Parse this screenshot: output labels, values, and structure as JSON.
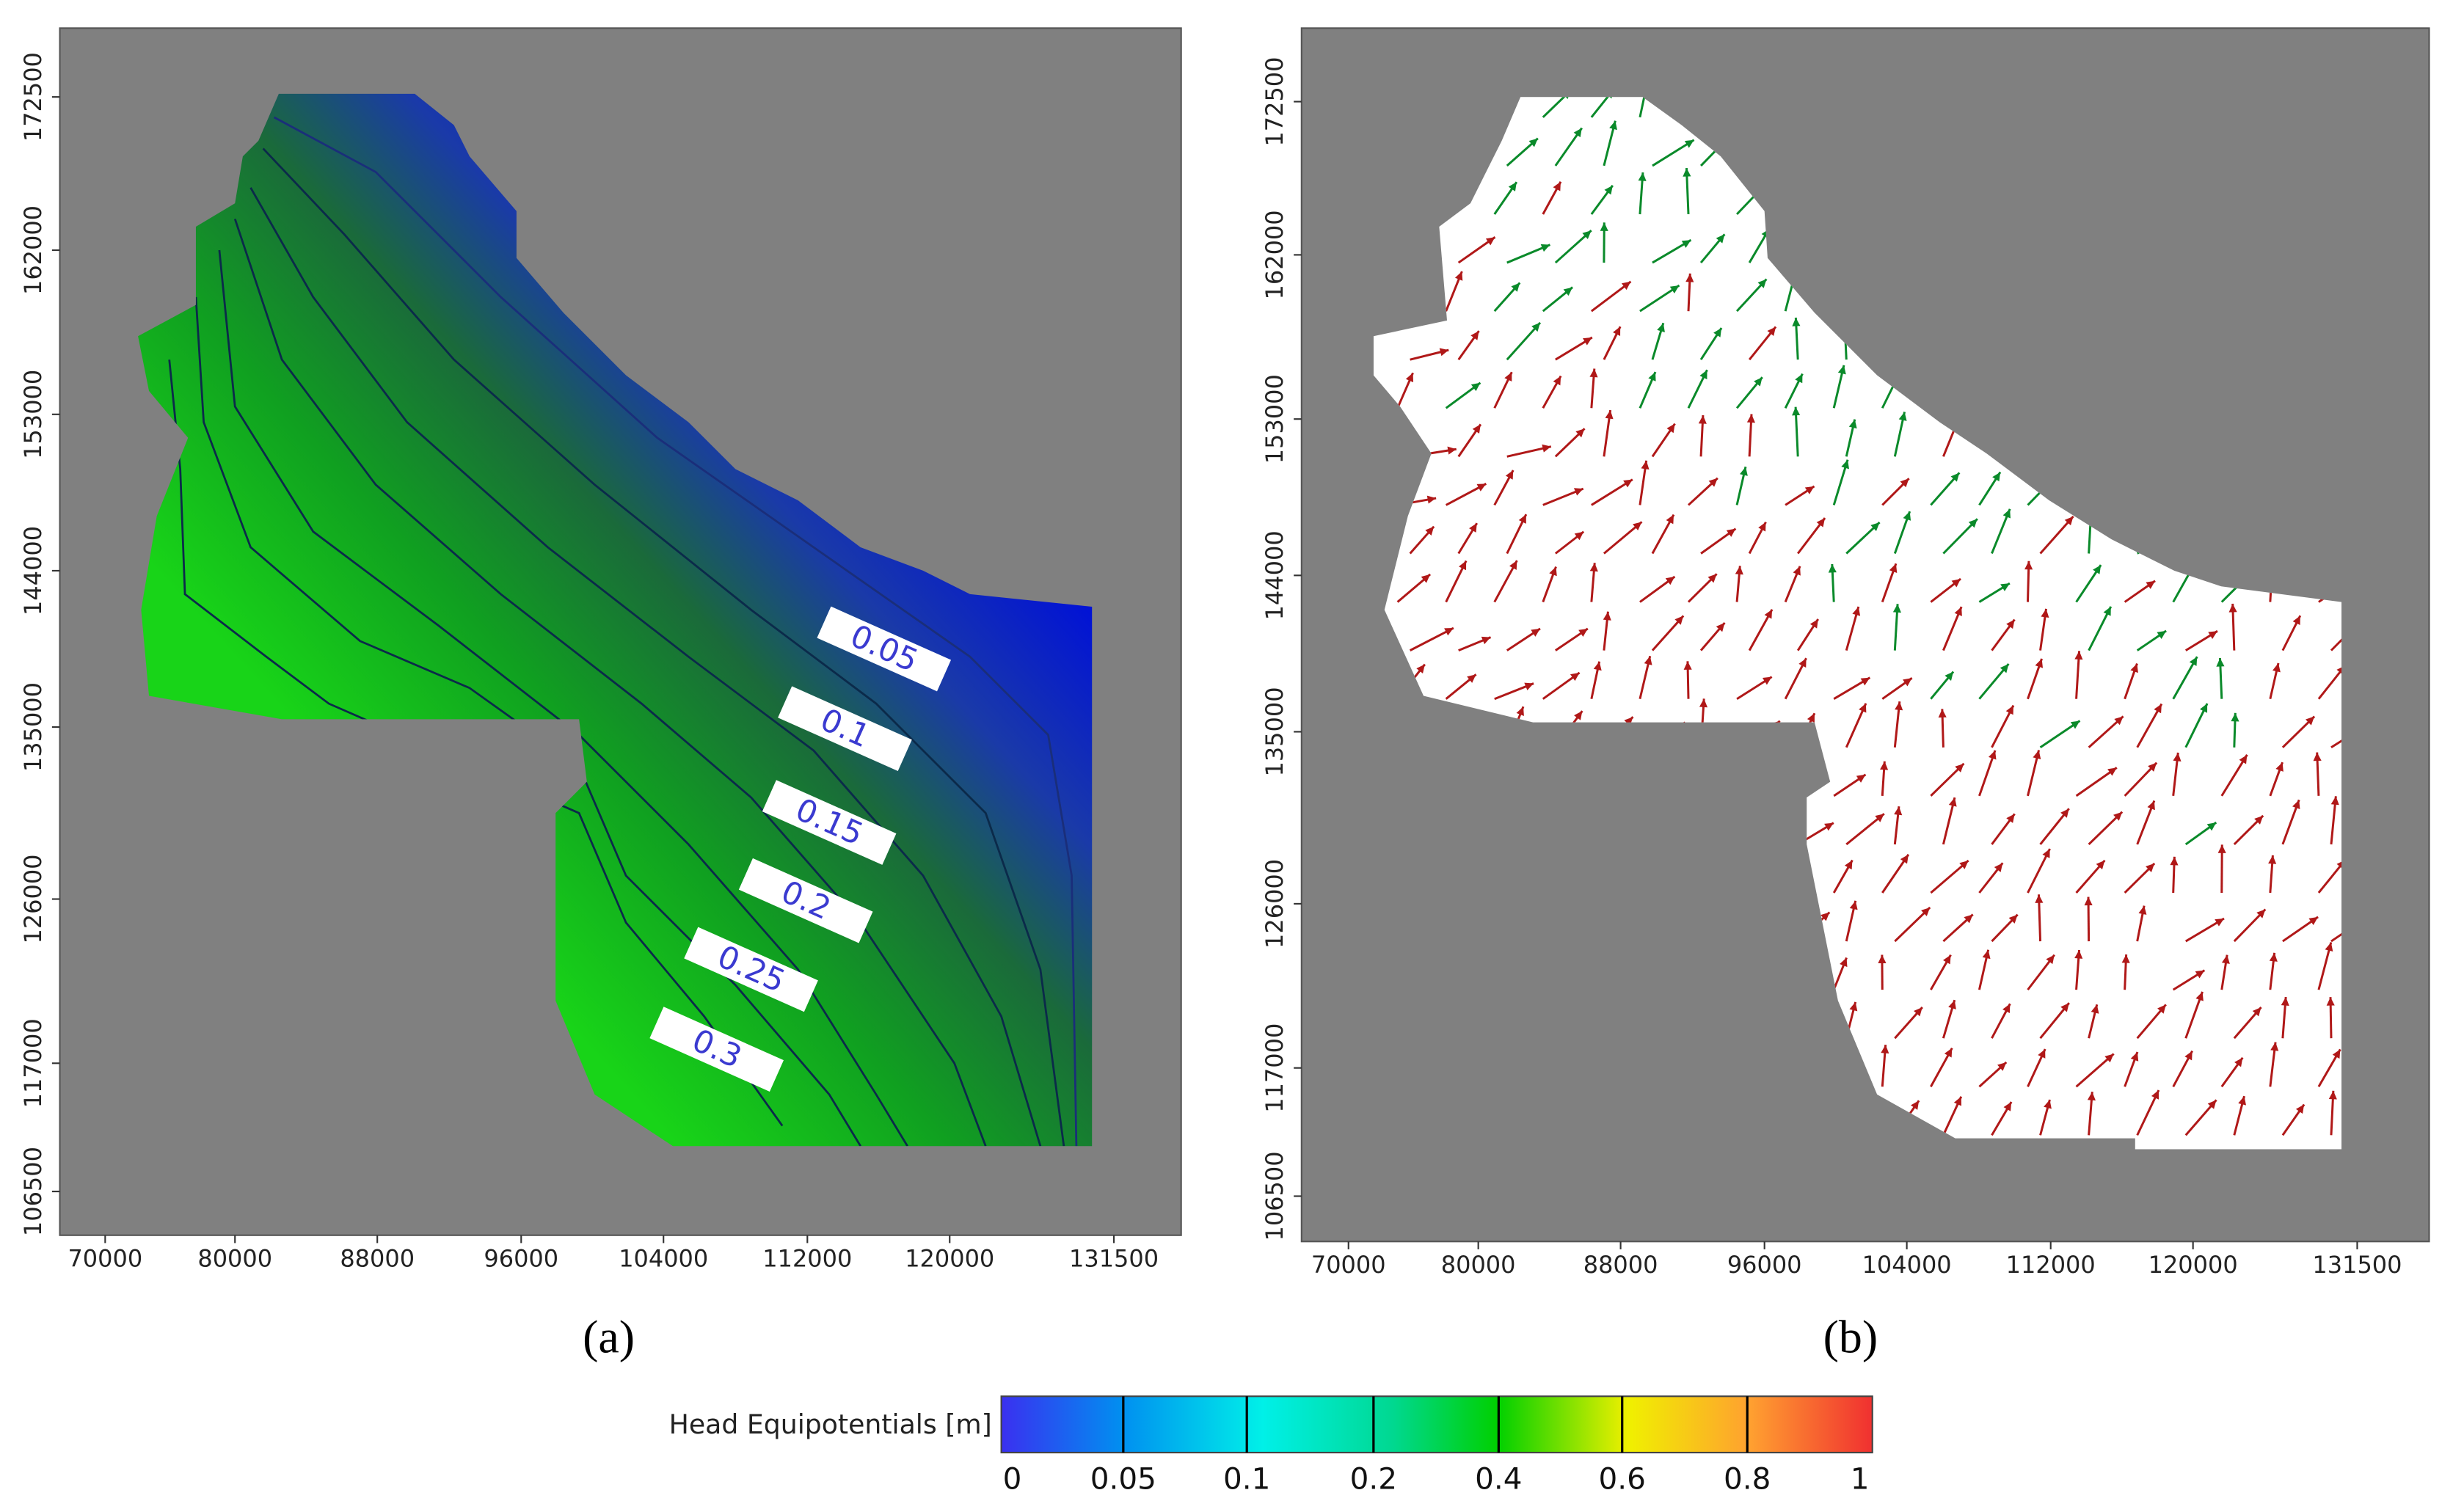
{
  "panels": [
    {
      "label": "(a)",
      "x_ticks": [
        "70000",
        "80000",
        "88000",
        "96000",
        "104000",
        "112000",
        "120000",
        "131500"
      ],
      "y_ticks": [
        "106500",
        "117000",
        "126000",
        "135000",
        "144000",
        "153000",
        "162000",
        "172500"
      ],
      "contour_labels": [
        "0.05",
        "0.1",
        "0.15",
        "0.2",
        "0.25",
        "0.3"
      ]
    },
    {
      "label": "(b)",
      "x_ticks": [
        "70000",
        "80000",
        "88000",
        "96000",
        "104000",
        "112000",
        "120000",
        "131500"
      ],
      "y_ticks": [
        "106500",
        "117000",
        "126000",
        "135000",
        "144000",
        "153000",
        "162000",
        "172500"
      ]
    }
  ],
  "colorbar": {
    "title": "Head Equipotentials [m]",
    "ticks": [
      "0",
      "0.05",
      "0.1",
      "0.2",
      "0.4",
      "0.6",
      "0.8",
      "1"
    ]
  }
}
